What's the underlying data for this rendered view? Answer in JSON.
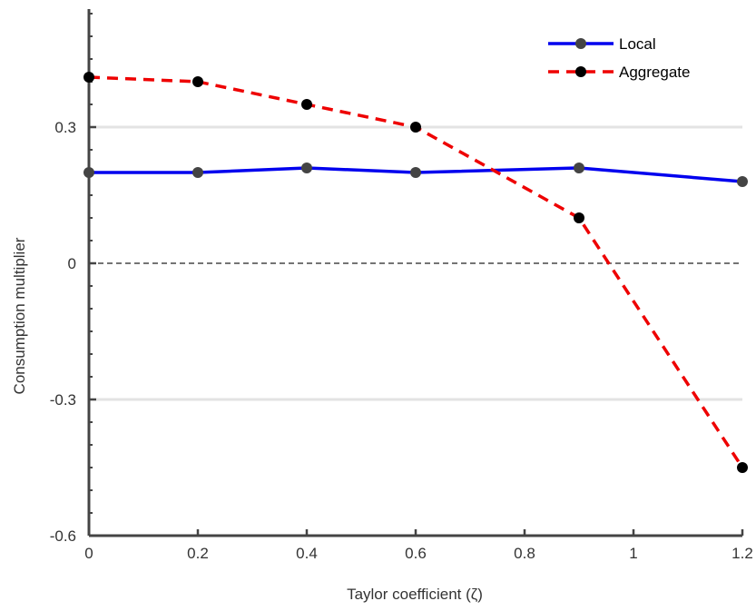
{
  "chart_data": {
    "type": "line",
    "xlabel": "Taylor coefficient (ζ)",
    "ylabel": "Consumption multiplier",
    "xlim": [
      0,
      1.2
    ],
    "ylim": [
      -0.6,
      0.56
    ],
    "xticks": [
      0,
      0.2,
      0.4,
      0.6,
      0.8,
      1,
      1.2
    ],
    "xtick_labels": [
      "0",
      "0.2",
      "0.4",
      "0.6",
      "0.8",
      "1",
      "1.2"
    ],
    "yticks": [
      -0.6,
      -0.3,
      0,
      0.3
    ],
    "ytick_labels": [
      "-0.6",
      "-0.3",
      "0",
      "0.3"
    ],
    "grid": "horizontal",
    "zero_line": true,
    "legend_position": "top-right",
    "series": [
      {
        "name": "Local",
        "color": "#0000ee",
        "line_style": "solid",
        "marker_color": "#444444",
        "x": [
          0,
          0.2,
          0.4,
          0.6,
          0.9,
          1.2
        ],
        "y": [
          0.2,
          0.2,
          0.21,
          0.2,
          0.21,
          0.18
        ]
      },
      {
        "name": "Aggregate",
        "color": "#ee0000",
        "line_style": "dashed",
        "marker_color": "#000000",
        "x": [
          0,
          0.2,
          0.4,
          0.6,
          0.9,
          1.2
        ],
        "y": [
          0.41,
          0.4,
          0.35,
          0.3,
          0.1,
          -0.45
        ]
      }
    ]
  }
}
